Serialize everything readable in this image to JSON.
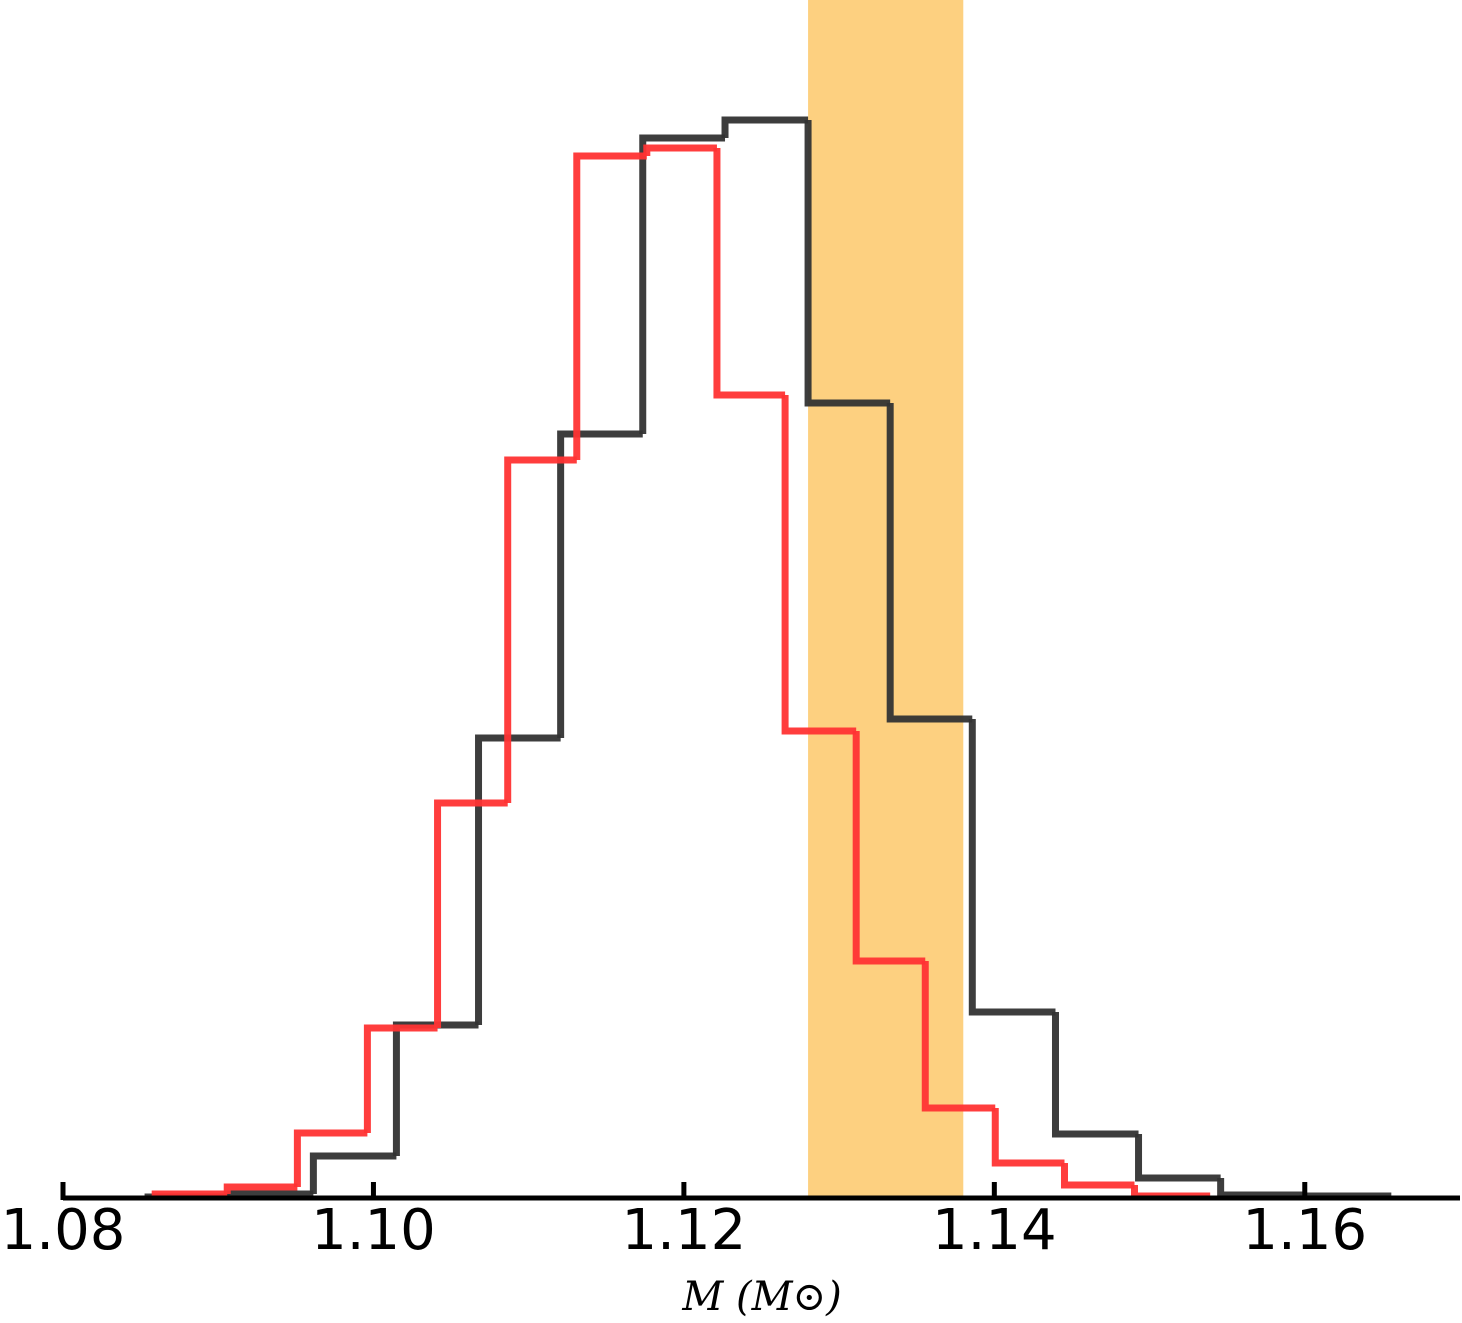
{
  "chart_data": {
    "type": "step-histogram",
    "xlabel": "M (M⊙)",
    "xlim": [
      1.08,
      1.17
    ],
    "xticks": [
      1.08,
      {
        "value": 1.1,
        "label": "1.10"
      },
      1.12,
      1.14,
      1.16
    ],
    "ylim": [
      0,
      1100
    ],
    "span": {
      "x": [
        1.128,
        1.138
      ],
      "color": "#fdd080"
    },
    "series": [
      {
        "color": "#333333",
        "bins": [
          1.08548,
          1.09077,
          1.09613,
          1.10148,
          1.10677,
          1.11206,
          1.11735,
          1.12265,
          1.128,
          1.13329,
          1.13858,
          1.14394,
          1.14929,
          1.15458,
          1.15987,
          1.16535
        ],
        "values": [
          1,
          4,
          42,
          173,
          460,
          764,
          1060,
          1078,
          795,
          479,
          186,
          64,
          20,
          3,
          2
        ]
      },
      {
        "color": "#ff3333",
        "bins": [
          1.08594,
          1.09058,
          1.0951,
          1.09961,
          1.10413,
          1.10865,
          1.1131,
          1.11761,
          1.12213,
          1.12652,
          1.1311,
          1.13555,
          1.14006,
          1.14452,
          1.14903,
          1.15368
        ],
        "values": [
          4,
          11,
          65,
          170,
          395,
          738,
          1042,
          1050,
          803,
          467,
          237,
          90,
          35,
          13,
          2
        ]
      }
    ]
  }
}
